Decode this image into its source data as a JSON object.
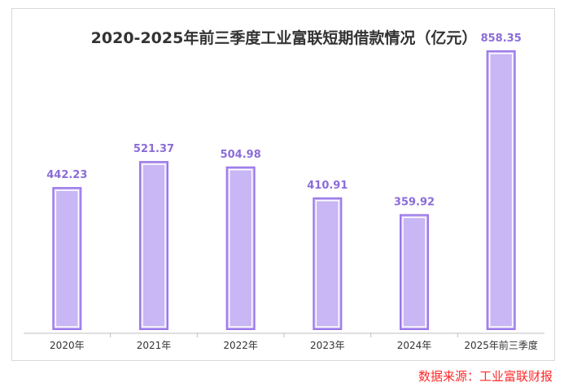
{
  "colors": {
    "bar_fill": "#c8b6f5",
    "bar_stroke": "#9a77ea",
    "bar_inner": "#ffffff",
    "value_label": "#8b6cd9",
    "axis": "#bfbfbf",
    "source": "#ff2a2a"
  },
  "chart_data": {
    "type": "bar",
    "title": "2020-2025年前三季度工业富联短期借款情况（亿元）",
    "categories": [
      "2020年",
      "2021年",
      "2022年",
      "2023年",
      "2024年",
      "2025年前三季度"
    ],
    "values": [
      442.23,
      521.37,
      504.98,
      410.91,
      359.92,
      858.35
    ],
    "value_labels": [
      "442.23",
      "521.37",
      "504.98",
      "410.91",
      "359.92",
      "858.35"
    ],
    "ylim": [
      0,
      900
    ],
    "grid": false,
    "legend": "none"
  },
  "source_note": "数据来源：工业富联财报"
}
